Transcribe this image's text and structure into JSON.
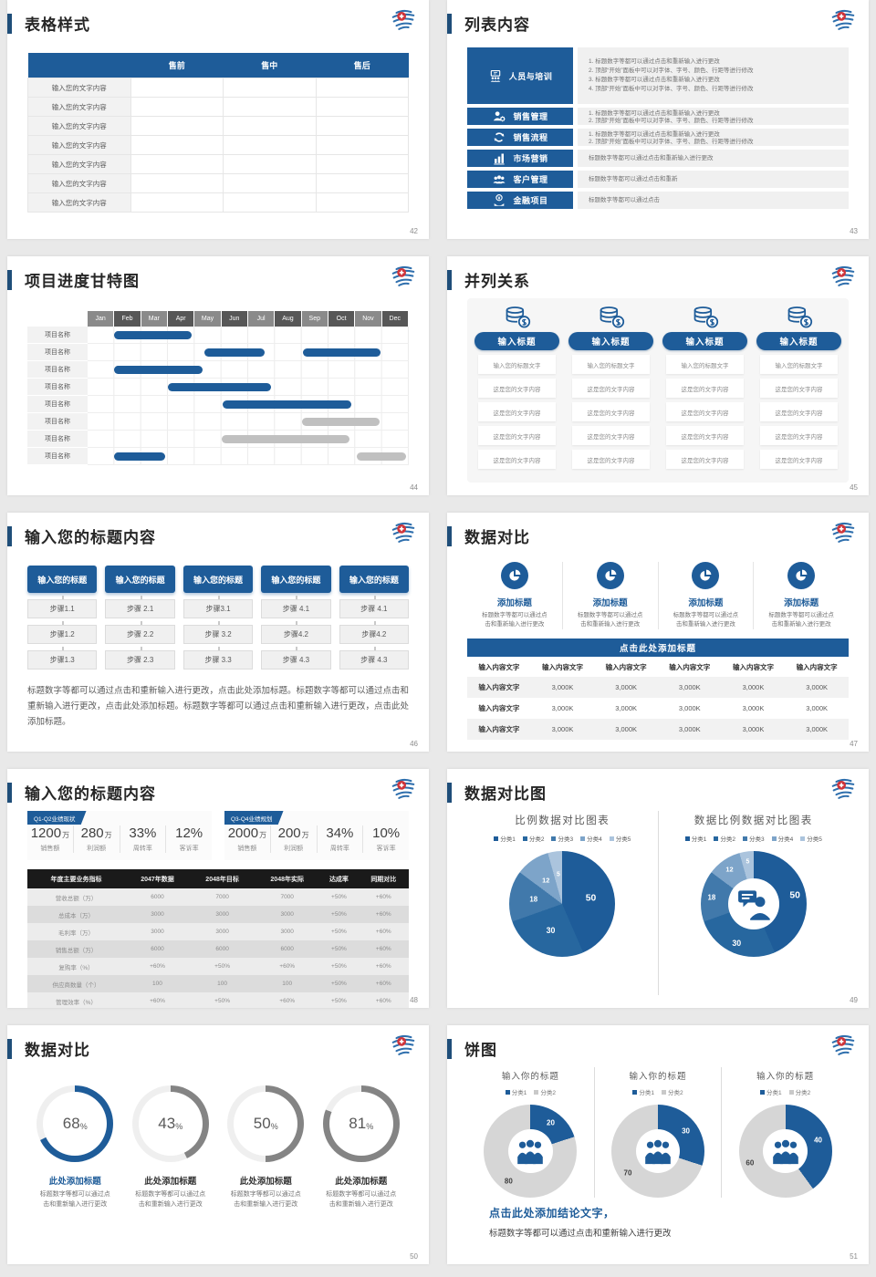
{
  "palette": {
    "primary": "#1e5c99",
    "primary_dark": "#1f4e79",
    "bar_gray": "#c0c0c0",
    "table_header_dark": "#1a1a1a",
    "pie_colors": [
      "#1e5c99",
      "#27679f",
      "#4179ab",
      "#7da4c9",
      "#abc4dd"
    ],
    "donut_gray": "#d6d6d6",
    "gauge_gray": "#848484",
    "gauge_track": "#efefef",
    "legend2_colors": [
      "#1e5c99",
      "#c9c9c9"
    ]
  },
  "slides": {
    "s42": {
      "title": "表格样式",
      "page": "42",
      "table": {
        "headers": [
          "",
          "售前",
          "售中",
          "售后"
        ],
        "rows": [
          "输入您的文字内容",
          "输入您的文字内容",
          "输入您的文字内容",
          "输入您的文字内容",
          "输入您的文字内容",
          "输入您的文字内容",
          "输入您的文字内容"
        ]
      }
    },
    "s43": {
      "title": "列表内容",
      "page": "43",
      "items": [
        {
          "icon": "i-training",
          "label": "人员与培训",
          "lines": [
            "1.    标题数字等都可以通过点击和重新输入进行更改",
            "2.    顶部“开始”面板中可以对字体、字号、颜色、行距等进行修改",
            "3.    标题数字等都可以通过点击和重新输入进行更改",
            "4.    顶部“开始”面板中可以对字体、字号、颜色、行距等进行修改"
          ]
        },
        {
          "icon": "i-salesmgmt",
          "label": "销售管理",
          "lines": [
            "1.    标题数字等都可以通过点击和重新输入进行更改",
            "2.    顶部“开始”面板中可以对字体、字号、颜色、行距等进行修改"
          ]
        },
        {
          "icon": "i-process",
          "label": "销售流程",
          "lines": [
            "1.    标题数字等都可以通过点击和重新输入进行更改",
            "2.    顶部“开始”面板中可以对字体、字号、颜色、行距等进行修改"
          ]
        },
        {
          "icon": "i-marketing",
          "label": "市场营销",
          "lines": [
            "标题数字等都可以通过点击和重新输入进行更改"
          ]
        },
        {
          "icon": "i-customer",
          "label": "客户管理",
          "lines": [
            "标题数字等都可以通过点击和重新"
          ]
        },
        {
          "icon": "i-finance",
          "label": "金融项目",
          "lines": [
            "标题数字等都可以通过点击"
          ]
        }
      ]
    },
    "s44": {
      "title": "项目进度甘特图",
      "page": "44",
      "months": [
        "Jan",
        "Feb",
        "Mar",
        "Apr",
        "May",
        "Jun",
        "Jul",
        "Aug",
        "Sep",
        "Oct",
        "Nov",
        "Dec"
      ],
      "row_label": "项目名称",
      "rows": [
        {
          "bars": [
            {
              "start": 1.0,
              "end": 3.9,
              "color": "blue"
            }
          ]
        },
        {
          "bars": [
            {
              "start": 4.35,
              "end": 6.6,
              "color": "blue"
            },
            {
              "start": 8.05,
              "end": 10.95,
              "color": "blue"
            }
          ]
        },
        {
          "bars": [
            {
              "start": 1.0,
              "end": 4.3,
              "color": "blue"
            }
          ]
        },
        {
          "bars": [
            {
              "start": 3.0,
              "end": 6.85,
              "color": "blue"
            }
          ]
        },
        {
          "bars": [
            {
              "start": 5.05,
              "end": 9.85,
              "color": "blue"
            }
          ]
        },
        {
          "bars": [
            {
              "start": 8.0,
              "end": 10.9,
              "color": "gray"
            }
          ]
        },
        {
          "bars": [
            {
              "start": 5.0,
              "end": 9.8,
              "color": "gray"
            }
          ]
        },
        {
          "bars": [
            {
              "start": 1.0,
              "end": 2.9,
              "color": "blue"
            },
            {
              "start": 10.05,
              "end": 11.9,
              "color": "gray"
            }
          ]
        }
      ]
    },
    "s45": {
      "title": "并列关系",
      "page": "45",
      "columns": [
        {
          "icon": "i-coins",
          "header": "输入标题",
          "cells": [
            "输入您的标题文字",
            "这是您的文字内容",
            "这是您的文字内容",
            "这是您的文字内容",
            "这是您的文字内容"
          ]
        },
        {
          "icon": "i-coins",
          "header": "输入标题",
          "cells": [
            "输入您的标题文字",
            "这是您的文字内容",
            "这是您的文字内容",
            "这是您的文字内容",
            "这是您的文字内容"
          ]
        },
        {
          "icon": "i-coins",
          "header": "输入标题",
          "cells": [
            "输入您的标题文字",
            "这是您的文字内容",
            "这是您的文字内容",
            "这是您的文字内容",
            "这是您的文字内容"
          ]
        },
        {
          "icon": "i-coins",
          "header": "输入标题",
          "cells": [
            "输入您的标题文字",
            "这是您的文字内容",
            "这是您的文字内容",
            "这是您的文字内容",
            "这是您的文字内容"
          ]
        }
      ]
    },
    "s46": {
      "title": "输入您的标题内容",
      "page": "46",
      "columns": [
        {
          "header": "输入您的标题",
          "steps": [
            "步骤1.1",
            "步骤1.2",
            "步骤1.3"
          ]
        },
        {
          "header": "输入您的标题",
          "steps": [
            "步骤 2.1",
            "步骤 2.2",
            "步骤 2.3"
          ]
        },
        {
          "header": "输入您的标题",
          "steps": [
            "步骤3.1",
            "步骤 3.2",
            "步骤 3.3"
          ]
        },
        {
          "header": "输入您的标题",
          "steps": [
            "步骤 4.1",
            "步骤4.2",
            "步骤 4.3"
          ]
        },
        {
          "header": "输入您的标题",
          "steps": [
            "步骤 4.1",
            "步骤4.2",
            "步骤 4.3"
          ]
        }
      ],
      "paragraph": "标题数字等都可以通过点击和重新输入进行更改，点击此处添加标题。标题数字等都可以通过点击和重新输入进行更改，点击此处添加标题。标题数字等都可以通过点击和重新输入进行更改，点击此处添加标题。"
    },
    "s47": {
      "title": "数据对比",
      "page": "47",
      "features": [
        {
          "icon": "i-pie",
          "title": "添加标题",
          "caption": [
            "标题数字等都可以通过点",
            "击和重新输入进行更改"
          ]
        },
        {
          "icon": "i-pie",
          "title": "添加标题",
          "caption": [
            "标题数字等都可以通过点",
            "击和重新输入进行更改"
          ]
        },
        {
          "icon": "i-pie",
          "title": "添加标题",
          "caption": [
            "标题数字等都可以通过点",
            "击和重新输入进行更改"
          ]
        },
        {
          "icon": "i-pie",
          "title": "添加标题",
          "caption": [
            "标题数字等都可以通过点",
            "击和重新输入进行更改"
          ]
        }
      ],
      "table_title": "点击此处添加标题",
      "table": {
        "headers": [
          "输入内容文字",
          "输入内容文字",
          "输入内容文字",
          "输入内容文字",
          "输入内容文字",
          "输入内容文字"
        ],
        "rows": [
          [
            "输入内容文字",
            "3,000K",
            "3,000K",
            "3,000K",
            "3,000K",
            "3,000K"
          ],
          [
            "输入内容文字",
            "3,000K",
            "3,000K",
            "3,000K",
            "3,000K",
            "3,000K"
          ],
          [
            "输入内容文字",
            "3,000K",
            "3,000K",
            "3,000K",
            "3,000K",
            "3,000K"
          ]
        ]
      }
    },
    "s48": {
      "title": "输入您的标题内容",
      "page": "48",
      "panels": [
        {
          "tag": "Q1-Q2业绩现状",
          "stats": [
            {
              "value": "1200",
              "unit": "万",
              "label": "销售额"
            },
            {
              "value": "280",
              "unit": "万",
              "label": "利润额"
            },
            {
              "value": "33%",
              "unit": "",
              "label": "周转率"
            },
            {
              "value": "12%",
              "unit": "",
              "label": "客诉率"
            }
          ]
        },
        {
          "tag": "Q3-Q4业绩规划",
          "stats": [
            {
              "value": "2000",
              "unit": "万",
              "label": "销售额"
            },
            {
              "value": "200",
              "unit": "万",
              "label": "利润额"
            },
            {
              "value": "34%",
              "unit": "",
              "label": "周转率"
            },
            {
              "value": "10%",
              "unit": "",
              "label": "客诉率"
            }
          ]
        }
      ],
      "table": {
        "headers": [
          "年度主要业务指标",
          "2047年数据",
          "2048年目标",
          "2048年实际",
          "达成率",
          "同期对比"
        ],
        "rows": [
          [
            "营收总额（万）",
            "6000",
            "7000",
            "7000",
            "+50%",
            "+60%"
          ],
          [
            "总成本（万）",
            "3000",
            "3000",
            "3000",
            "+50%",
            "+60%"
          ],
          [
            "毛利率（万）",
            "3000",
            "3000",
            "3000",
            "+50%",
            "+60%"
          ],
          [
            "销售总额（万）",
            "6000",
            "6000",
            "6000",
            "+50%",
            "+60%"
          ],
          [
            "复购率（%）",
            "+60%",
            "+50%",
            "+60%",
            "+50%",
            "+60%"
          ],
          [
            "供应商数量（个）",
            "100",
            "100",
            "100",
            "+50%",
            "+60%"
          ],
          [
            "管理效率（%）",
            "+60%",
            "+50%",
            "+60%",
            "+50%",
            "+60%"
          ]
        ]
      }
    },
    "s49": {
      "title": "数据对比图",
      "page": "49",
      "charts": [
        {
          "type": "pie",
          "title": "比例数据对比图表",
          "legend": [
            "分类1",
            "分类2",
            "分类3",
            "分类4",
            "分类5"
          ],
          "values": [
            50,
            30,
            18,
            12,
            5
          ]
        },
        {
          "type": "donut",
          "title": "数据比例数据对比图表",
          "legend": [
            "分类1",
            "分类2",
            "分类3",
            "分类4",
            "分类5"
          ],
          "values": [
            50,
            30,
            18,
            12,
            5
          ],
          "center_icon": "i-consultant"
        }
      ]
    },
    "s50": {
      "title": "数据对比",
      "page": "50",
      "gauges": [
        {
          "pct": 68,
          "color": "#1e5c99",
          "highlight": true,
          "title": "此处添加标题",
          "caption": [
            "标题数字等都可以通过点",
            "击和重新输入进行更改"
          ]
        },
        {
          "pct": 43,
          "color": "#848484",
          "highlight": false,
          "title": "此处添加标题",
          "caption": [
            "标题数字等都可以通过点",
            "击和重新输入进行更改"
          ]
        },
        {
          "pct": 50,
          "color": "#848484",
          "highlight": false,
          "title": "此处添加标题",
          "caption": [
            "标题数字等都可以通过点",
            "击和重新输入进行更改"
          ]
        },
        {
          "pct": 81,
          "color": "#848484",
          "highlight": false,
          "title": "此处添加标题",
          "caption": [
            "标题数字等都可以通过点",
            "击和重新输入进行更改"
          ]
        }
      ]
    },
    "s51": {
      "title": "饼图",
      "page": "51",
      "donuts": [
        {
          "title": "输入你的标题",
          "legend": [
            "分类1",
            "分类2"
          ],
          "values": [
            20,
            80
          ],
          "center_icon": "i-people3"
        },
        {
          "title": "输入你的标题",
          "legend": [
            "分类1",
            "分类2"
          ],
          "values": [
            30,
            70
          ],
          "center_icon": "i-people3"
        },
        {
          "title": "输入你的标题",
          "legend": [
            "分类1",
            "分类2"
          ],
          "values": [
            40,
            60
          ],
          "center_icon": "i-people3"
        }
      ],
      "conclusion_title": "点击此处添加结论文字，",
      "conclusion_text": "标题数字等都可以通过点击和重新输入进行更改"
    }
  },
  "chart_data": [
    {
      "type": "gantt",
      "title": "项目进度甘特图",
      "x_categories": [
        "Jan",
        "Feb",
        "Mar",
        "Apr",
        "May",
        "Jun",
        "Jul",
        "Aug",
        "Sep",
        "Oct",
        "Nov",
        "Dec"
      ],
      "rows": [
        {
          "label": "项目名称",
          "bars": [
            {
              "start_month": 1.0,
              "end_month": 3.9,
              "color": "blue"
            }
          ]
        },
        {
          "label": "项目名称",
          "bars": [
            {
              "start_month": 4.35,
              "end_month": 6.6,
              "color": "blue"
            },
            {
              "start_month": 8.05,
              "end_month": 10.95,
              "color": "blue"
            }
          ]
        },
        {
          "label": "项目名称",
          "bars": [
            {
              "start_month": 1.0,
              "end_month": 4.3,
              "color": "blue"
            }
          ]
        },
        {
          "label": "项目名称",
          "bars": [
            {
              "start_month": 3.0,
              "end_month": 6.85,
              "color": "blue"
            }
          ]
        },
        {
          "label": "项目名称",
          "bars": [
            {
              "start_month": 5.05,
              "end_month": 9.85,
              "color": "blue"
            }
          ]
        },
        {
          "label": "项目名称",
          "bars": [
            {
              "start_month": 8.0,
              "end_month": 10.9,
              "color": "gray"
            }
          ]
        },
        {
          "label": "项目名称",
          "bars": [
            {
              "start_month": 5.0,
              "end_month": 9.8,
              "color": "gray"
            }
          ]
        },
        {
          "label": "项目名称",
          "bars": [
            {
              "start_month": 1.0,
              "end_month": 2.9,
              "color": "blue"
            },
            {
              "start_month": 10.05,
              "end_month": 11.9,
              "color": "gray"
            }
          ]
        }
      ]
    },
    {
      "type": "pie",
      "title": "比例数据对比图表",
      "labels": [
        "分类1",
        "分类2",
        "分类3",
        "分类4",
        "分类5"
      ],
      "values": [
        50,
        30,
        18,
        12,
        5
      ],
      "legend_position": "top"
    },
    {
      "type": "pie",
      "subtype": "donut",
      "title": "数据比例数据对比图表",
      "labels": [
        "分类1",
        "分类2",
        "分类3",
        "分类4",
        "分类5"
      ],
      "values": [
        50,
        30,
        18,
        12,
        5
      ],
      "legend_position": "top"
    },
    {
      "type": "gauge",
      "title": "数据对比",
      "values": [
        68,
        43,
        50,
        81
      ],
      "unit": "%"
    },
    {
      "type": "pie",
      "subtype": "donut",
      "title": "饼图",
      "labels": [
        "分类1",
        "分类2"
      ],
      "series": [
        {
          "name": "输入你的标题",
          "values": [
            20,
            80
          ]
        },
        {
          "name": "输入你的标题",
          "values": [
            30,
            70
          ]
        },
        {
          "name": "输入你的标题",
          "values": [
            40,
            60
          ]
        }
      ]
    }
  ]
}
